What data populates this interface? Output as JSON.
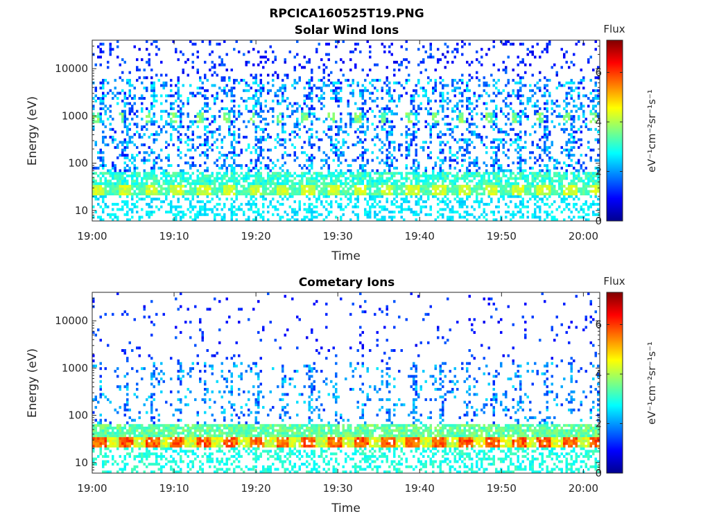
{
  "figure": {
    "title": "RPCICA160525T19.PNG"
  },
  "chart_data": [
    {
      "type": "heatmap",
      "title": "Solar Wind Ions",
      "xlabel": "Time",
      "ylabel": "Energy (eV)",
      "x_ticks": [
        "19:00",
        "19:10",
        "19:20",
        "19:30",
        "19:40",
        "19:50",
        "20:00"
      ],
      "x_range_minutes": [
        0,
        62
      ],
      "y_scale": "log",
      "y_ticks": [
        10,
        100,
        1000,
        10000
      ],
      "y_tick_labels": [
        "10",
        "100",
        "1000",
        "10000"
      ],
      "y_range": [
        6,
        40000
      ],
      "colorbar": {
        "title": "Flux",
        "label": "eV⁻¹cm⁻²sr⁻¹s⁻¹",
        "range": [
          0,
          7.3
        ],
        "ticks": [
          0,
          2,
          4,
          6
        ],
        "colormap": "jet"
      },
      "sweep_period_minutes": 3.2,
      "features": [
        {
          "energy_eV": 900,
          "flux_log": 3.8,
          "description": "periodic solar wind peak near 1000 eV"
        },
        {
          "energy_eV": 30,
          "flux_log": 3.6,
          "description": "low energy band"
        }
      ]
    },
    {
      "type": "heatmap",
      "title": "Cometary Ions",
      "xlabel": "Time",
      "ylabel": "Energy (eV)",
      "x_ticks": [
        "19:00",
        "19:10",
        "19:20",
        "19:30",
        "19:40",
        "19:50",
        "20:00"
      ],
      "x_range_minutes": [
        0,
        62
      ],
      "y_scale": "log",
      "y_ticks": [
        10,
        100,
        1000,
        10000
      ],
      "y_tick_labels": [
        "10",
        "100",
        "1000",
        "10000"
      ],
      "y_range": [
        6,
        40000
      ],
      "colorbar": {
        "title": "Flux",
        "label": "eV⁻¹cm⁻²sr⁻¹s⁻¹",
        "range": [
          0,
          7.3
        ],
        "ticks": [
          0,
          2,
          4,
          6
        ],
        "colormap": "jet"
      },
      "sweep_period_minutes": 3.2,
      "features": [
        {
          "energy_eV": 30,
          "flux_log": 5.5,
          "description": "intense low energy cometary band"
        },
        {
          "energy_eV": 1000,
          "flux_log": 2.2,
          "description": "sparse higher energy ions"
        }
      ]
    }
  ]
}
